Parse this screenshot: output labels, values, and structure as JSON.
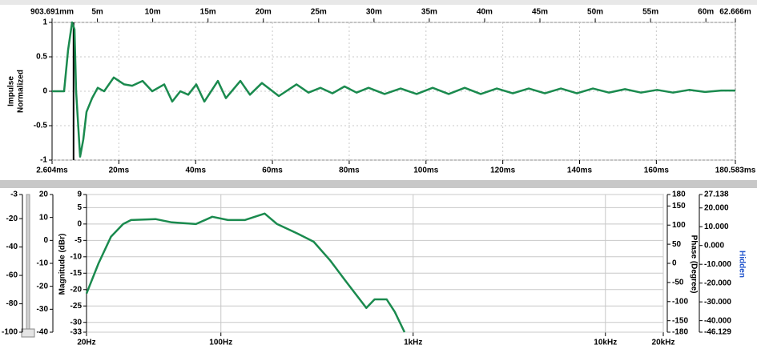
{
  "chart_data": [
    {
      "type": "line",
      "ylabel_lines": [
        "Impulse",
        "Normalized"
      ],
      "x": [
        2.604,
        5.73,
        6.78,
        7.82,
        8.45,
        8.87,
        9.91,
        10.74,
        11.58,
        13.04,
        14.5,
        16.17,
        18.67,
        21.39,
        23.47,
        26.19,
        28.69,
        31.82,
        33.91,
        36.0,
        38.08,
        40.17,
        42.26,
        45.8,
        47.89,
        51.65,
        54.15,
        57.28,
        61.67,
        66.26,
        69.39,
        72.52,
        75.65,
        78.78,
        81.91,
        85.04,
        89.21,
        93.39,
        97.56,
        101.74,
        105.91,
        110.09,
        114.26,
        118.44,
        122.61,
        126.78,
        130.96,
        135.13,
        139.31,
        143.48,
        147.66,
        151.83,
        156.0,
        160.18,
        164.35,
        168.52,
        172.7,
        176.87,
        180.58
      ],
      "series": [
        {
          "color": "#1a8a4e",
          "values": [
            0,
            0,
            0.6,
            1,
            0.9,
            0,
            -0.95,
            -0.7,
            -0.3,
            -0.1,
            0.05,
            0,
            0.2,
            0.1,
            0.08,
            0.15,
            0,
            0.1,
            -0.15,
            0,
            -0.05,
            0.1,
            -0.15,
            0.15,
            -0.1,
            0.15,
            -0.05,
            0.12,
            -0.07,
            0.1,
            -0.02,
            0.05,
            -0.03,
            0.07,
            -0.02,
            0.05,
            -0.04,
            0.04,
            -0.04,
            0.05,
            -0.04,
            0.05,
            -0.04,
            0.04,
            -0.03,
            0.04,
            -0.03,
            0.04,
            -0.03,
            0.04,
            -0.02,
            0.03,
            -0.02,
            0.02,
            -0.02,
            0.02,
            -0.01,
            0.01,
            0.01
          ]
        }
      ],
      "cursor": 8.2,
      "xlim": [
        2.604,
        180.583
      ],
      "xticks": [
        {
          "value": 2.604,
          "label": "2.604ms"
        },
        {
          "value": 20,
          "label": "20ms"
        },
        {
          "value": 40,
          "label": "40ms"
        },
        {
          "value": 60,
          "label": "60ms"
        },
        {
          "value": 80,
          "label": "80ms"
        },
        {
          "value": 100,
          "label": "100ms"
        },
        {
          "value": 120,
          "label": "120ms"
        },
        {
          "value": 140,
          "label": "140ms"
        },
        {
          "value": 160,
          "label": "160ms"
        },
        {
          "value": 180.583,
          "label": "180.583ms"
        }
      ],
      "x2lim": [
        0.903691,
        62.666
      ],
      "x2ticks": [
        {
          "value": 0.903691,
          "label": "903.691mm"
        },
        {
          "value": 5,
          "label": "5m"
        },
        {
          "value": 10,
          "label": "10m"
        },
        {
          "value": 15,
          "label": "15m"
        },
        {
          "value": 20,
          "label": "20m"
        },
        {
          "value": 25,
          "label": "25m"
        },
        {
          "value": 30,
          "label": "30m"
        },
        {
          "value": 35,
          "label": "35m"
        },
        {
          "value": 40,
          "label": "40m"
        },
        {
          "value": 45,
          "label": "45m"
        },
        {
          "value": 50,
          "label": "50m"
        },
        {
          "value": 55,
          "label": "55m"
        },
        {
          "value": 60,
          "label": "60m"
        },
        {
          "value": 62.666,
          "label": "62.666m"
        }
      ],
      "ylim": [
        -1,
        1
      ],
      "yticks": [
        1,
        0.5,
        0,
        -0.5,
        -1
      ],
      "grid": true
    },
    {
      "type": "line",
      "xscale": "log",
      "ylabel": "Magnitude (dBr)",
      "y2label": "Phase (Degree)",
      "y3label": "Hidden",
      "x": [
        20,
        23.1,
        26.8,
        31,
        34.1,
        45.7,
        55.5,
        74.2,
        90.2,
        109,
        133,
        169,
        196,
        250,
        304,
        369,
        448,
        571,
        630,
        728,
        802,
        902
      ],
      "series": [
        {
          "color": "#1a8a4e",
          "values": [
            -21.2,
            -12,
            -3.9,
            0,
            1.2,
            1.5,
            0.5,
            0,
            2.2,
            1.2,
            1.2,
            3.2,
            0,
            -2.9,
            -5.4,
            -11,
            -17.6,
            -25.6,
            -23,
            -23,
            -26.8,
            -33
          ]
        }
      ],
      "xlim": [
        20,
        20000
      ],
      "xticks": [
        {
          "value": 20,
          "label": "20Hz"
        },
        {
          "value": 100,
          "label": "100Hz"
        },
        {
          "value": 1000,
          "label": "1kHz"
        },
        {
          "value": 10000,
          "label": "10kHz"
        },
        {
          "value": 20000,
          "label": "20kHz"
        }
      ],
      "ylim": [
        -33,
        9
      ],
      "yticks": [
        9,
        5,
        0,
        -5,
        -10,
        -15,
        -20,
        -25,
        -30,
        -33
      ],
      "y2lim": [
        -180,
        180
      ],
      "y2ticks": [
        180,
        150,
        100,
        50,
        0,
        -50,
        -100,
        -150,
        -180
      ],
      "y3lim": [
        -46.129,
        27.138
      ],
      "y3ticks": [
        27.138,
        {
          "value": 20,
          "label": "20.000"
        },
        {
          "value": 10,
          "label": "10.000"
        },
        {
          "value": 0,
          "label": "0.000"
        },
        {
          "value": -10,
          "label": "-10.000"
        },
        {
          "value": -20,
          "label": "-20.000"
        },
        {
          "value": -30,
          "label": "-30.000"
        },
        {
          "value": -40,
          "label": "-40.000"
        },
        -46.129
      ],
      "y4lim": [
        -40,
        20
      ],
      "y4ticks": [
        20,
        10,
        0,
        -10,
        -20,
        -30,
        -40
      ],
      "y5lim": [
        -100,
        -3
      ],
      "y5ticks": [
        -3,
        -20,
        -40,
        -60,
        -80,
        -100
      ],
      "grid": true
    }
  ]
}
